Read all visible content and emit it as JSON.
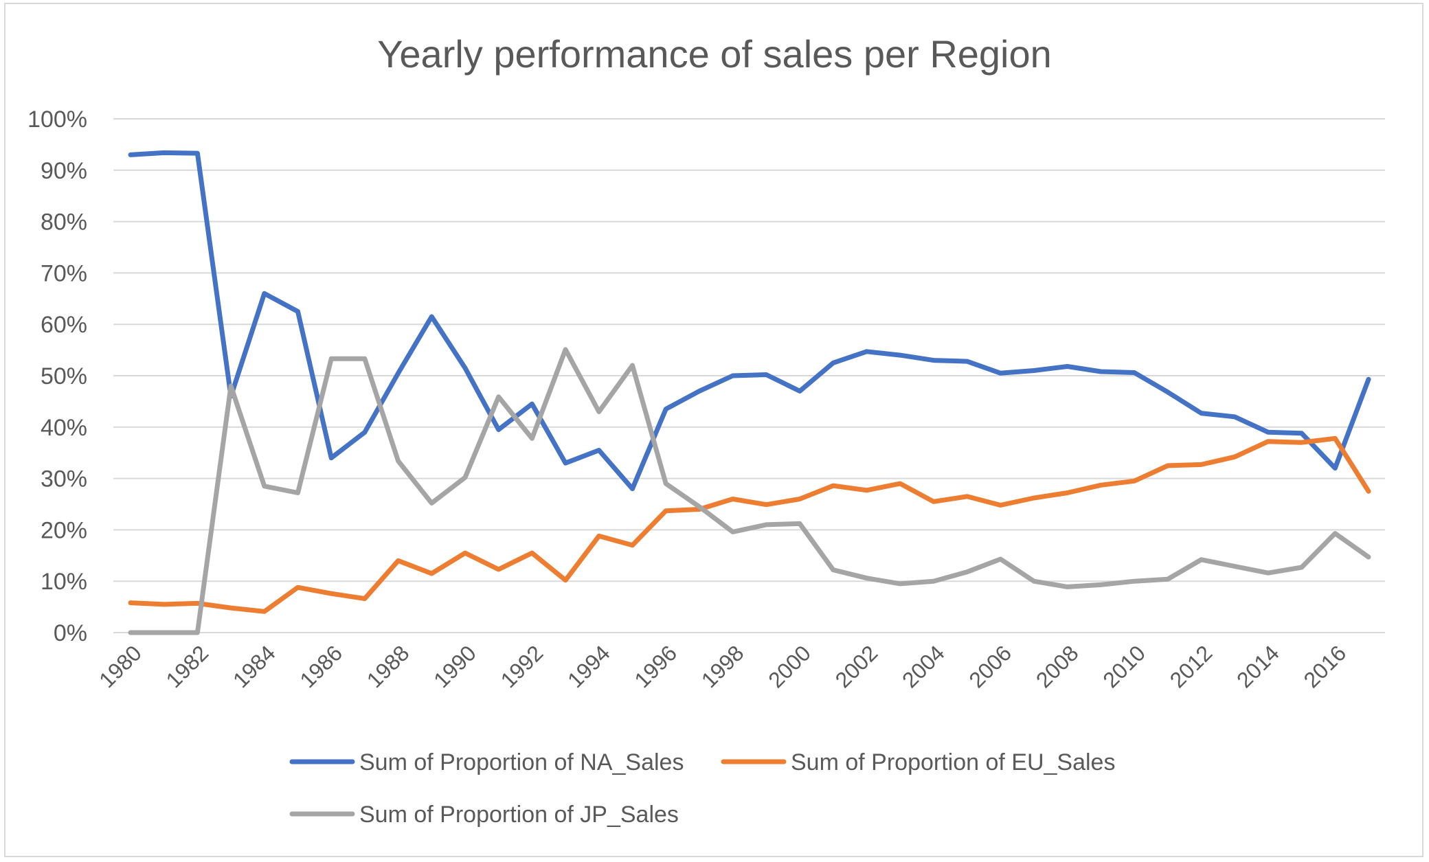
{
  "chart_data": {
    "type": "line",
    "title": "Yearly performance of sales per Region",
    "xlabel": "",
    "ylabel": "",
    "ylim": [
      0,
      1
    ],
    "y_ticks": [
      "0%",
      "10%",
      "20%",
      "30%",
      "40%",
      "50%",
      "60%",
      "70%",
      "80%",
      "90%",
      "100%"
    ],
    "x_tick_labels": [
      "1980",
      "1982",
      "1984",
      "1986",
      "1988",
      "1990",
      "1992",
      "1994",
      "1996",
      "1998",
      "2000",
      "2002",
      "2004",
      "2006",
      "2008",
      "2010",
      "2012",
      "2014",
      "2016"
    ],
    "x": [
      1980,
      1981,
      1982,
      1983,
      1984,
      1985,
      1986,
      1987,
      1988,
      1989,
      1990,
      1991,
      1992,
      1993,
      1994,
      1995,
      1996,
      1997,
      1998,
      1999,
      2000,
      2001,
      2002,
      2003,
      2004,
      2005,
      2006,
      2007,
      2008,
      2009,
      2010,
      2011,
      2012,
      2013,
      2014,
      2015,
      2016,
      2017
    ],
    "grid": true,
    "legend_position": "bottom",
    "series": [
      {
        "name": "Sum of Proportion of NA_Sales",
        "color": "#4472C4",
        "values": [
          0.93,
          0.934,
          0.933,
          0.46,
          0.66,
          0.625,
          0.34,
          0.39,
          0.505,
          0.615,
          0.515,
          0.395,
          0.445,
          0.33,
          0.355,
          0.28,
          0.435,
          0.47,
          0.5,
          0.502,
          0.47,
          0.525,
          0.547,
          0.54,
          0.53,
          0.528,
          0.505,
          0.51,
          0.518,
          0.508,
          0.506,
          0.468,
          0.427,
          0.42,
          0.39,
          0.388,
          0.32,
          0.493
        ]
      },
      {
        "name": "Sum of Proportion of EU_Sales",
        "color": "#ED7D31",
        "values": [
          0.058,
          0.055,
          0.057,
          0.048,
          0.041,
          0.088,
          0.076,
          0.066,
          0.14,
          0.115,
          0.155,
          0.123,
          0.155,
          0.102,
          0.188,
          0.17,
          0.237,
          0.24,
          0.26,
          0.249,
          0.26,
          0.286,
          0.277,
          0.29,
          0.255,
          0.265,
          0.248,
          0.262,
          0.272,
          0.287,
          0.295,
          0.325,
          0.327,
          0.342,
          0.372,
          0.37,
          0.378,
          0.275
        ]
      },
      {
        "name": "Sum of Proportion of JP_Sales",
        "color": "#A5A5A5",
        "values": [
          0.0,
          0.0,
          0.0,
          0.48,
          0.285,
          0.272,
          0.533,
          0.533,
          0.334,
          0.252,
          0.302,
          0.459,
          0.378,
          0.551,
          0.43,
          0.52,
          0.29,
          0.245,
          0.196,
          0.21,
          0.212,
          0.122,
          0.106,
          0.095,
          0.1,
          0.118,
          0.143,
          0.1,
          0.089,
          0.093,
          0.1,
          0.104,
          0.142,
          0.129,
          0.116,
          0.127,
          0.193,
          0.147
        ]
      }
    ]
  }
}
